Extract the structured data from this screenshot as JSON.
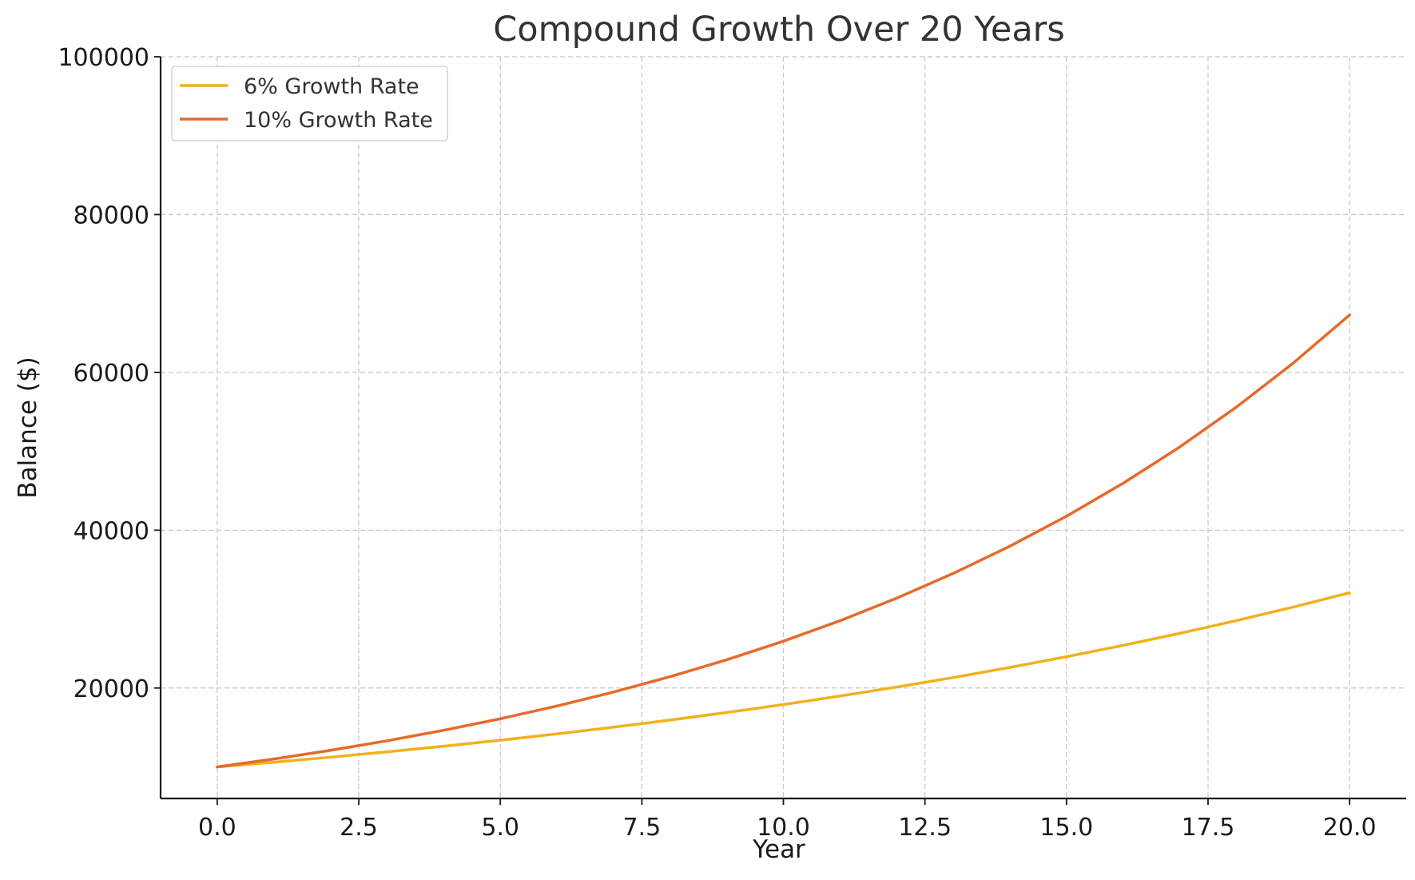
{
  "chart_data": {
    "type": "line",
    "title": "Compound Growth Over 20 Years",
    "xlabel": "Year",
    "ylabel": "Balance ($)",
    "xlim": [
      -1,
      21
    ],
    "ylim": [
      6000,
      100000
    ],
    "x_ticks": [
      0.0,
      2.5,
      5.0,
      7.5,
      10.0,
      12.5,
      15.0,
      17.5,
      20.0
    ],
    "x_tick_labels": [
      "0.0",
      "2.5",
      "5.0",
      "7.5",
      "10.0",
      "12.5",
      "15.0",
      "17.5",
      "20.0"
    ],
    "y_ticks": [
      20000,
      40000,
      60000,
      80000,
      100000
    ],
    "y_tick_labels": [
      "20000",
      "40000",
      "60000",
      "80000",
      "100000"
    ],
    "grid": true,
    "legend_position": "top-left",
    "x": [
      0,
      1,
      2,
      3,
      4,
      5,
      6,
      7,
      8,
      9,
      10,
      11,
      12,
      13,
      14,
      15,
      16,
      17,
      18,
      19,
      20
    ],
    "series": [
      {
        "name": "6% Growth Rate",
        "color": "#F2B01E",
        "values": [
          10000,
          10600,
          11236,
          11910,
          12625,
          13382,
          14185,
          15036,
          15938,
          16895,
          17908,
          18983,
          20122,
          21329,
          22609,
          23966,
          25404,
          26928,
          28543,
          30256,
          32071
        ]
      },
      {
        "name": "10% Growth Rate",
        "color": "#E8692A",
        "values": [
          10000,
          11000,
          12100,
          13310,
          14641,
          16105,
          17716,
          19487,
          21436,
          23579,
          25937,
          28531,
          31384,
          34523,
          37975,
          41772,
          45950,
          50545,
          55599,
          61159,
          67275
        ]
      }
    ]
  }
}
